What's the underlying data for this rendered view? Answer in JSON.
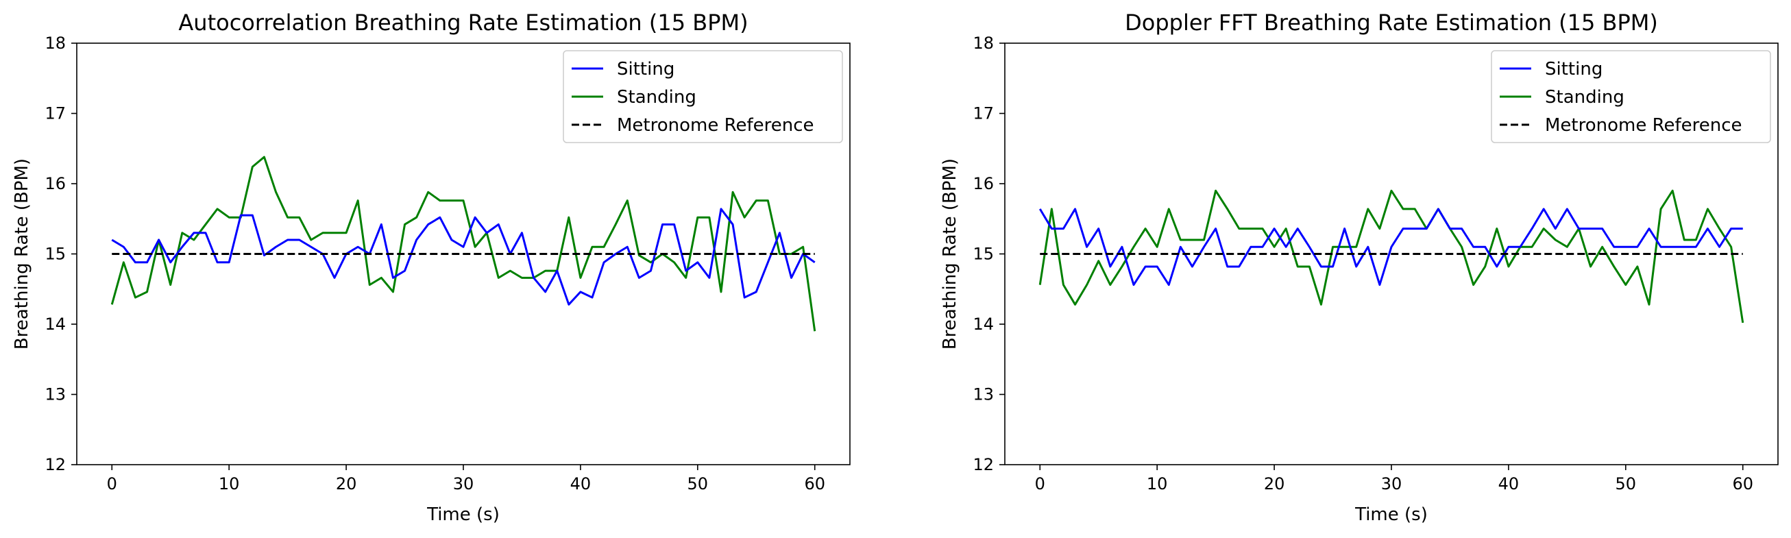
{
  "charts": [
    {
      "title": "Autocorrelation Breathing Rate Estimation (15 BPM)",
      "xlabel": "Time (s)",
      "ylabel": "Breathing Rate (BPM)"
    },
    {
      "title": "Doppler FFT Breathing Rate Estimation (15 BPM)",
      "xlabel": "Time (s)",
      "ylabel": "Breathing Rate (BPM)"
    }
  ],
  "chart_data": [
    {
      "type": "line",
      "title": "Autocorrelation Breathing Rate Estimation (15 BPM)",
      "xlabel": "Time (s)",
      "ylabel": "Breathing Rate (BPM)",
      "xlim": [
        -3,
        63
      ],
      "ylim": [
        12,
        18
      ],
      "xticks": [
        0,
        10,
        20,
        30,
        40,
        50,
        60
      ],
      "yticks": [
        12,
        13,
        14,
        15,
        16,
        17,
        18
      ],
      "grid": false,
      "legend_position": "top-right",
      "x": [
        0,
        1,
        2,
        3,
        4,
        5,
        6,
        7,
        8,
        9,
        10,
        11,
        12,
        13,
        14,
        15,
        16,
        17,
        18,
        19,
        20,
        21,
        22,
        23,
        24,
        25,
        26,
        27,
        28,
        29,
        30,
        31,
        32,
        33,
        34,
        35,
        36,
        37,
        38,
        39,
        40,
        41,
        42,
        43,
        44,
        45,
        46,
        47,
        48,
        49,
        50,
        51,
        52,
        53,
        54,
        55,
        56,
        57,
        58,
        59,
        60
      ],
      "series": [
        {
          "name": "Sitting",
          "color": "#0000ff",
          "style": "solid",
          "values": [
            15.2,
            15.1,
            14.88,
            14.88,
            15.2,
            14.88,
            15.1,
            15.3,
            15.3,
            14.88,
            14.88,
            15.55,
            15.55,
            14.98,
            15.1,
            15.2,
            15.2,
            15.1,
            15.0,
            14.66,
            15.0,
            15.1,
            15.0,
            15.42,
            14.66,
            14.76,
            15.2,
            15.42,
            15.52,
            15.2,
            15.1,
            15.52,
            15.3,
            15.42,
            15.0,
            15.3,
            14.66,
            14.46,
            14.76,
            14.28,
            14.46,
            14.38,
            14.88,
            15.0,
            15.1,
            14.66,
            14.76,
            15.42,
            15.42,
            14.76,
            14.88,
            14.66,
            15.64,
            15.42,
            14.38,
            14.46,
            14.88,
            15.3,
            14.66,
            15.0,
            14.88
          ]
        },
        {
          "name": "Standing",
          "color": "#008000",
          "style": "solid",
          "values": [
            14.28,
            14.88,
            14.38,
            14.46,
            15.2,
            14.56,
            15.3,
            15.2,
            15.42,
            15.64,
            15.52,
            15.52,
            16.24,
            16.38,
            15.88,
            15.52,
            15.52,
            15.2,
            15.3,
            15.3,
            15.3,
            15.76,
            14.56,
            14.66,
            14.46,
            15.42,
            15.52,
            15.88,
            15.76,
            15.76,
            15.76,
            15.1,
            15.3,
            14.66,
            14.76,
            14.66,
            14.66,
            14.76,
            14.76,
            15.52,
            14.66,
            15.1,
            15.1,
            15.42,
            15.76,
            14.98,
            14.88,
            15.0,
            14.88,
            14.66,
            15.52,
            15.52,
            14.46,
            15.88,
            15.52,
            15.76,
            15.76,
            15.0,
            15.0,
            15.1,
            13.9
          ]
        },
        {
          "name": "Metronome Reference",
          "color": "#000000",
          "style": "dashed",
          "values": [
            15,
            15,
            15,
            15,
            15,
            15,
            15,
            15,
            15,
            15,
            15,
            15,
            15,
            15,
            15,
            15,
            15,
            15,
            15,
            15,
            15,
            15,
            15,
            15,
            15,
            15,
            15,
            15,
            15,
            15,
            15,
            15,
            15,
            15,
            15,
            15,
            15,
            15,
            15,
            15,
            15,
            15,
            15,
            15,
            15,
            15,
            15,
            15,
            15,
            15,
            15,
            15,
            15,
            15,
            15,
            15,
            15,
            15,
            15,
            15,
            15
          ]
        }
      ]
    },
    {
      "type": "line",
      "title": "Doppler FFT Breathing Rate Estimation (15 BPM)",
      "xlabel": "Time (s)",
      "ylabel": "Breathing Rate (BPM)",
      "xlim": [
        -3,
        63
      ],
      "ylim": [
        12,
        18
      ],
      "xticks": [
        0,
        10,
        20,
        30,
        40,
        50,
        60
      ],
      "yticks": [
        12,
        13,
        14,
        15,
        16,
        17,
        18
      ],
      "grid": false,
      "legend_position": "top-right",
      "x": [
        0,
        1,
        2,
        3,
        4,
        5,
        6,
        7,
        8,
        9,
        10,
        11,
        12,
        13,
        14,
        15,
        16,
        17,
        18,
        19,
        20,
        21,
        22,
        23,
        24,
        25,
        26,
        27,
        28,
        29,
        30,
        31,
        32,
        33,
        34,
        35,
        36,
        37,
        38,
        39,
        40,
        41,
        42,
        43,
        44,
        45,
        46,
        47,
        48,
        49,
        50,
        51,
        52,
        53,
        54,
        55,
        56,
        57,
        58,
        59,
        60
      ],
      "series": [
        {
          "name": "Sitting",
          "color": "#0000ff",
          "style": "solid",
          "values": [
            15.64,
            15.36,
            15.36,
            15.64,
            15.1,
            15.36,
            14.82,
            15.1,
            14.56,
            14.82,
            14.82,
            14.56,
            15.1,
            14.82,
            15.1,
            15.36,
            14.82,
            14.82,
            15.1,
            15.1,
            15.36,
            15.1,
            15.36,
            15.1,
            14.82,
            14.82,
            15.36,
            14.82,
            15.1,
            14.56,
            15.1,
            15.36,
            15.36,
            15.36,
            15.64,
            15.36,
            15.36,
            15.1,
            15.1,
            14.82,
            15.1,
            15.1,
            15.36,
            15.64,
            15.36,
            15.64,
            15.36,
            15.36,
            15.36,
            15.1,
            15.1,
            15.1,
            15.36,
            15.1,
            15.1,
            15.1,
            15.1,
            15.36,
            15.1,
            15.36,
            15.36
          ]
        },
        {
          "name": "Standing",
          "color": "#008000",
          "style": "solid",
          "values": [
            14.56,
            15.64,
            14.56,
            14.28,
            14.56,
            14.9,
            14.56,
            14.82,
            15.1,
            15.36,
            15.1,
            15.64,
            15.2,
            15.2,
            15.2,
            15.9,
            15.64,
            15.36,
            15.36,
            15.36,
            15.1,
            15.36,
            14.82,
            14.82,
            14.28,
            15.1,
            15.1,
            15.1,
            15.64,
            15.36,
            15.9,
            15.64,
            15.64,
            15.36,
            15.64,
            15.36,
            15.1,
            14.56,
            14.82,
            15.36,
            14.82,
            15.1,
            15.1,
            15.36,
            15.2,
            15.1,
            15.36,
            14.82,
            15.1,
            14.82,
            14.56,
            14.82,
            14.28,
            15.64,
            15.9,
            15.2,
            15.2,
            15.64,
            15.36,
            15.1,
            14.02
          ]
        },
        {
          "name": "Metronome Reference",
          "color": "#000000",
          "style": "dashed",
          "values": [
            15,
            15,
            15,
            15,
            15,
            15,
            15,
            15,
            15,
            15,
            15,
            15,
            15,
            15,
            15,
            15,
            15,
            15,
            15,
            15,
            15,
            15,
            15,
            15,
            15,
            15,
            15,
            15,
            15,
            15,
            15,
            15,
            15,
            15,
            15,
            15,
            15,
            15,
            15,
            15,
            15,
            15,
            15,
            15,
            15,
            15,
            15,
            15,
            15,
            15,
            15,
            15,
            15,
            15,
            15,
            15,
            15,
            15,
            15,
            15,
            15
          ]
        }
      ]
    }
  ]
}
